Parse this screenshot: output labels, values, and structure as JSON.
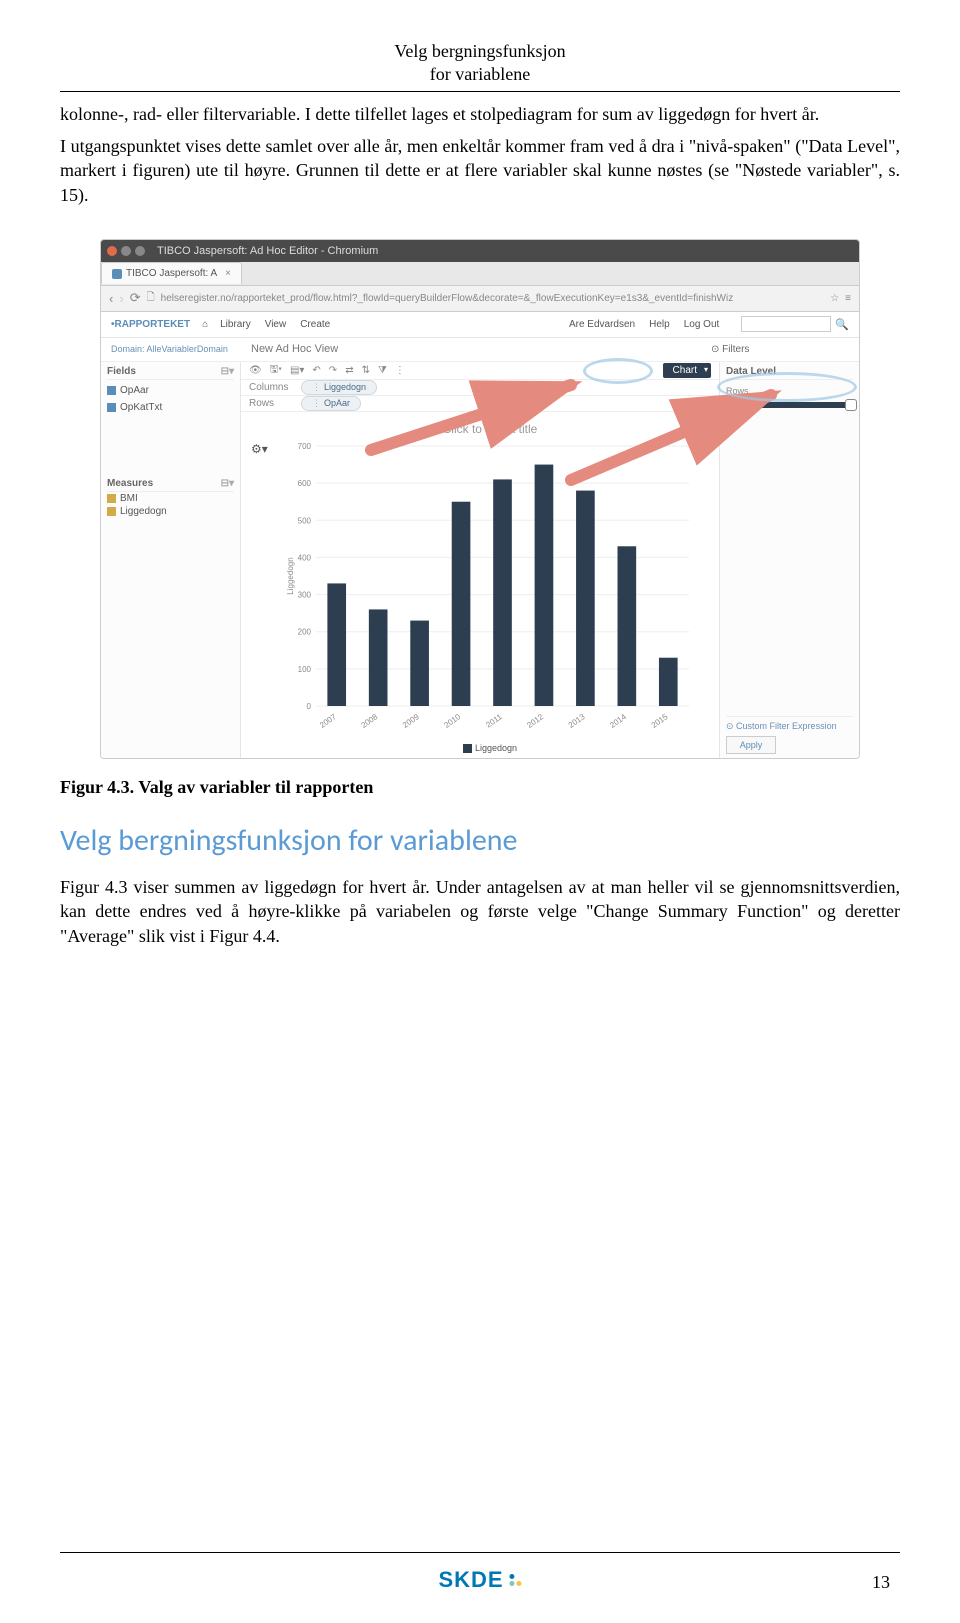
{
  "header": {
    "line1": "Velg bergningsfunksjon",
    "line2": "for variablene"
  },
  "para1": "kolonne-, rad- eller filtervariable. I dette tilfellet lages et stolpediagram for sum av liggedøgn for hvert år.",
  "para2": "I utgangspunktet vises dette samlet over alle år, men enkeltår kommer fram ved å dra i \"nivå-spaken\" (\"Data Level\", markert i figuren) ute til høyre. Grunnen til dette er at flere variabler skal kunne nøstes (se \"Nøstede variabler\", s. 15).",
  "figcaption": "Figur 4.3. Valg av variabler til rapporten",
  "section_heading": "Velg bergningsfunksjon for variablene",
  "para3": "Figur 4.3 viser summen av liggedøgn for hvert år. Under antagelsen av at man heller vil se gjennomsnittsverdien, kan dette endres ved å høyre-klikke på variabelen og første velge \"Change Summary Function\" og deretter \"Average\" slik vist i Figur 4.4.",
  "page_number": "13",
  "logo_text": "SKDE",
  "logo_colors": {
    "dot1": "#0078b4",
    "dot2": "#7fc6bc",
    "dot3": "#f4c542"
  },
  "app": {
    "window_title": "TIBCO Jaspersoft: Ad Hoc Editor - Chromium",
    "tab_title": "TIBCO Jaspersoft: A",
    "url": "helseregister.no/rapporteket_prod/flow.html?_flowId=queryBuilderFlow&decorate=&_flowExecutionKey=e1s3&_eventId=finishWiz",
    "brand": "RAPPORTEKET",
    "menu": [
      "Library",
      "View",
      "Create"
    ],
    "user": "Are Edvardsen",
    "menu_right": [
      "Help",
      "Log Out"
    ],
    "subhead": "New Ad Hoc View",
    "domain_label": "Domain: AlleVariablerDomain",
    "left": {
      "fields_title": "Fields",
      "fields": [
        "OpAar",
        "OpKatTxt"
      ],
      "measures_title": "Measures",
      "measures": [
        "BMI",
        "Liggedogn"
      ]
    },
    "center": {
      "chart_dd": "Chart",
      "columns_label": "Columns",
      "columns_pill": "Liggedogn",
      "rows_label": "Rows",
      "rows_pill": "OpAar",
      "chart_title": "Click to add a title",
      "legend": "Liggedogn",
      "chart": {
        "type": "bar",
        "categories": [
          "2007",
          "2008",
          "2009",
          "2010",
          "2011",
          "2012",
          "2013",
          "2014",
          "2015"
        ],
        "values": [
          330,
          260,
          230,
          550,
          610,
          650,
          580,
          430,
          130
        ],
        "ylim": [
          0,
          700
        ],
        "ytick_step": 100,
        "bar_color": "#2c3e50",
        "grid_color": "#eeeeee",
        "axis_color": "#cccccc",
        "label_color": "#888888",
        "bar_width": 0.45
      }
    },
    "right": {
      "filters_title": "Filters",
      "data_level_label": "Data Level",
      "rows_label": "Rows",
      "custom_filter": "Custom Filter Expression",
      "apply": "Apply"
    },
    "arrow_color": "#e58a7e"
  }
}
